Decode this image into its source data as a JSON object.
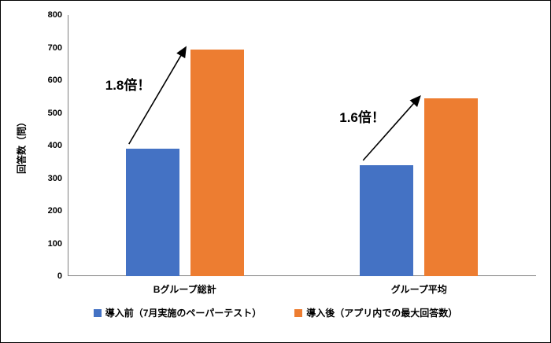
{
  "chart_data": {
    "type": "bar",
    "categories": [
      "Bグループ総計",
      "グループ平均"
    ],
    "series": [
      {
        "name": "導入前（7月実施のペーパーテスト）",
        "color": "#4472C4",
        "values": [
          390,
          340
        ]
      },
      {
        "name": "導入後（アプリ内での最大回答数）",
        "color": "#ED7D31",
        "values": [
          695,
          545
        ]
      }
    ],
    "title": "",
    "xlabel": "",
    "ylabel": "回答数（問）",
    "ylim": [
      0,
      800
    ],
    "ytick_step": 100,
    "grid": "off",
    "legend_position": "bottom",
    "annotations": [
      {
        "text": "1.8倍！",
        "category": "Bグループ総計"
      },
      {
        "text": "1.6倍！",
        "category": "グループ平均"
      }
    ]
  }
}
